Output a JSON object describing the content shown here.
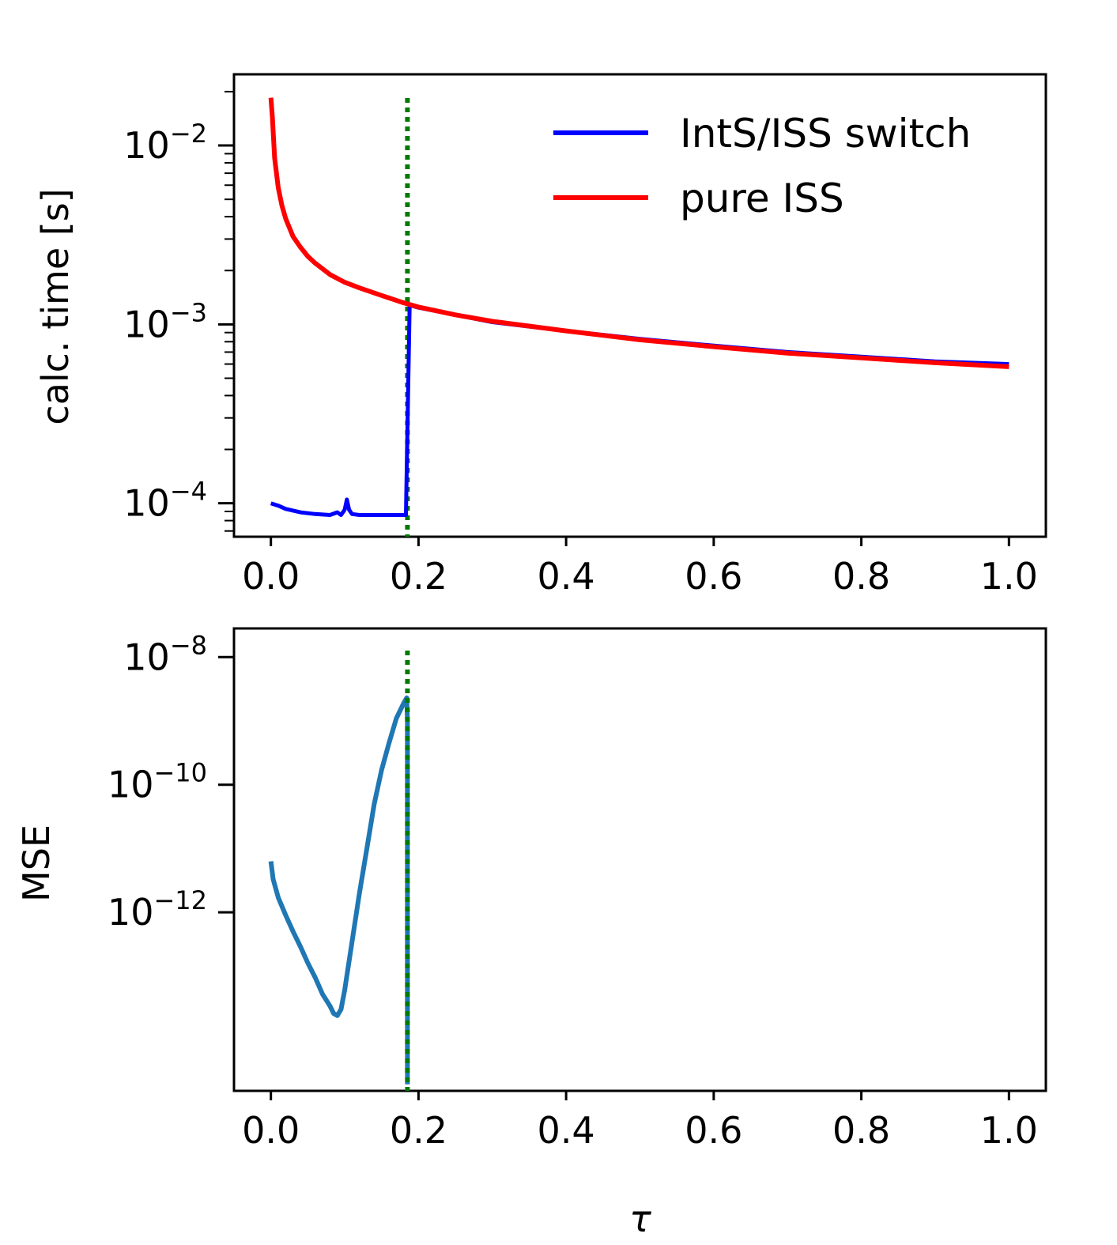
{
  "chart_data": [
    {
      "type": "line",
      "ylabel": "calc. time [s]",
      "yscale": "log",
      "ylim": [
        6.5e-05,
        0.025
      ],
      "xlim": [
        -0.05,
        1.05
      ],
      "x_ticks": [
        "0.0",
        "0.2",
        "0.4",
        "0.6",
        "0.8",
        "1.0"
      ],
      "y_ticks": [
        {
          "base": "10",
          "exp": "−2",
          "value": 0.01
        },
        {
          "base": "10",
          "exp": "−3",
          "value": 0.001
        },
        {
          "base": "10",
          "exp": "−4",
          "value": 0.0001
        }
      ],
      "legend_position": "top-right",
      "vline": {
        "x": 0.185,
        "color": "#007a00",
        "style": "dotted"
      },
      "series": [
        {
          "name": "IntS/ISS switch",
          "color": "#0000ff",
          "x": [
            0,
            0.01,
            0.02,
            0.04,
            0.06,
            0.08,
            0.09,
            0.095,
            0.1,
            0.103,
            0.106,
            0.11,
            0.12,
            0.14,
            0.16,
            0.18,
            0.183,
            0.188,
            0.2,
            0.25,
            0.3,
            0.4,
            0.5,
            0.6,
            0.7,
            0.8,
            0.9,
            1.0
          ],
          "y": [
            0.0001,
            9.7e-05,
            9.3e-05,
            8.9e-05,
            8.7e-05,
            8.6e-05,
            8.9e-05,
            8.6e-05,
            9.2e-05,
            0.000105,
            9.2e-05,
            8.7e-05,
            8.6e-05,
            8.6e-05,
            8.6e-05,
            8.6e-05,
            8.6e-05,
            0.00128,
            0.00124,
            0.00113,
            0.00103,
            0.00092,
            0.00083,
            0.00076,
            0.0007,
            0.00066,
            0.00062,
            0.0006
          ]
        },
        {
          "name": "pure ISS",
          "color": "#ff0000",
          "x": [
            0,
            0.002,
            0.005,
            0.01,
            0.015,
            0.02,
            0.03,
            0.04,
            0.05,
            0.06,
            0.08,
            0.1,
            0.12,
            0.15,
            0.18,
            0.2,
            0.25,
            0.3,
            0.4,
            0.5,
            0.6,
            0.7,
            0.8,
            0.9,
            1.0
          ],
          "y": [
            0.0185,
            0.0145,
            0.0085,
            0.0058,
            0.0046,
            0.0039,
            0.0031,
            0.0027,
            0.0024,
            0.0022,
            0.0019,
            0.00172,
            0.0016,
            0.00145,
            0.00132,
            0.00125,
            0.00113,
            0.00104,
            0.00092,
            0.00082,
            0.00075,
            0.00069,
            0.00065,
            0.00061,
            0.00058
          ]
        }
      ]
    },
    {
      "type": "line",
      "ylabel": "MSE",
      "xlabel": "τ",
      "yscale": "log",
      "ylim_exp": [
        -14.8,
        -7.55
      ],
      "xlim": [
        -0.05,
        1.05
      ],
      "x_ticks": [
        "0.0",
        "0.2",
        "0.4",
        "0.6",
        "0.8",
        "1.0"
      ],
      "y_ticks": [
        {
          "base": "10",
          "exp": "−8",
          "value": 1e-08
        },
        {
          "base": "10",
          "exp": "−10",
          "value": 1e-10
        },
        {
          "base": "10",
          "exp": "−12",
          "value": 1e-12
        }
      ],
      "vline": {
        "x": 0.185,
        "color": "#007a00",
        "style": "dotted"
      },
      "series": [
        {
          "color": "#1f77b4",
          "x": [
            0,
            0.003,
            0.01,
            0.02,
            0.03,
            0.04,
            0.05,
            0.06,
            0.07,
            0.08,
            0.085,
            0.09,
            0.095,
            0.1,
            0.11,
            0.12,
            0.13,
            0.14,
            0.15,
            0.16,
            0.17,
            0.18,
            0.184,
            0.185,
            0.185
          ],
          "y": [
            6.3e-12,
            3.3e-12,
            1.7e-12,
            9e-13,
            5e-13,
            2.9e-13,
            1.6e-13,
            9.5e-14,
            5.2e-14,
            3.4e-14,
            2.6e-14,
            2.4e-14,
            3e-14,
            6e-14,
            3.5e-13,
            2e-12,
            1e-11,
            5e-11,
            1.7e-10,
            4.5e-10,
            1.1e-09,
            1.9e-09,
            2.3e-09,
            1e-09,
            2e-15
          ]
        }
      ]
    }
  ]
}
